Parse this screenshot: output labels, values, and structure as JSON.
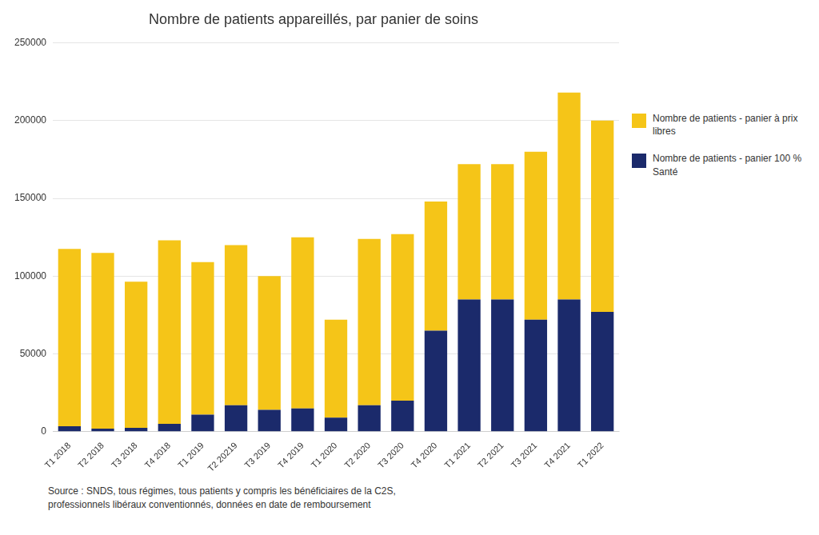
{
  "chart_data": {
    "type": "bar",
    "stacked": true,
    "title": "Nombre de patients appareillés, par panier de soins",
    "categories": [
      "T1 2018",
      "T2 2018",
      "T3 2018",
      "T4 2018",
      "T1 2019",
      "T2 20219",
      "T3 2019",
      "T4 2019",
      "T1 2020",
      "T2 2020",
      "T3 2020",
      "T4 2020",
      "T1 2021",
      "T2 2021",
      "T3 2021",
      "T4 2021",
      "T1 2022"
    ],
    "series": [
      {
        "name": "Nombre de patients - panier 100 %\nSanté",
        "color": "#1B2A6B",
        "values": [
          3500,
          2000,
          2500,
          5000,
          11000,
          17000,
          14000,
          15000,
          9000,
          17000,
          20000,
          65000,
          85000,
          85000,
          72000,
          85000,
          77000
        ]
      },
      {
        "name": "Nombre de patients - panier à prix\nlibres",
        "color": "#F5C518",
        "values": [
          114000,
          113000,
          94000,
          118000,
          98000,
          103000,
          86000,
          110000,
          63000,
          107000,
          107000,
          83000,
          87000,
          87000,
          108000,
          133000,
          123000
        ]
      }
    ],
    "ylim": [
      0,
      250000
    ],
    "yticks": [
      0,
      50000,
      100000,
      150000,
      200000,
      250000
    ],
    "grid": true,
    "legend": "right",
    "annotations": [
      "Source : SNDS, tous régimes, tous patients y compris les bénéficiaires de la C2S,\nprofessionnels libéraux conventionnés, données en date de remboursement"
    ]
  }
}
